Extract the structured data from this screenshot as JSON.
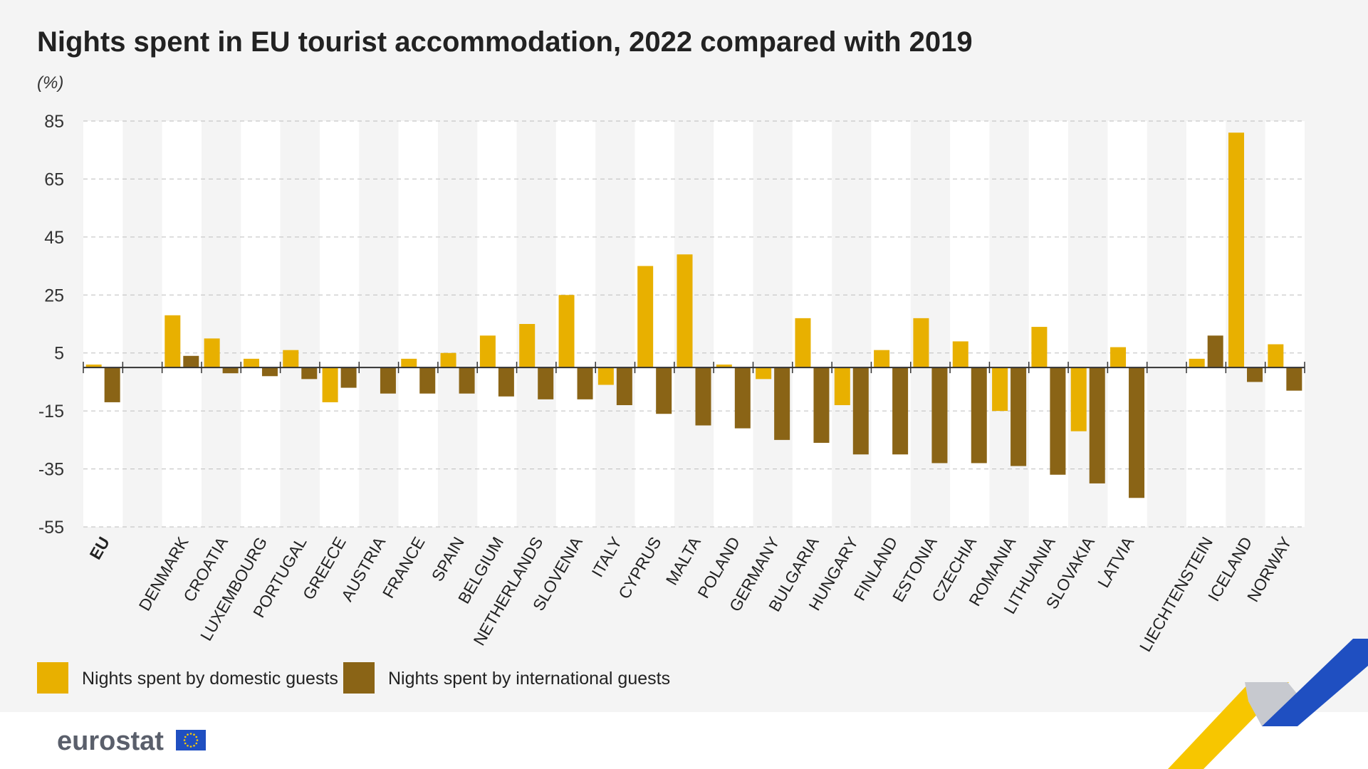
{
  "chart_data": {
    "type": "bar",
    "title": "Nights spent in EU tourist accommodation, 2022 compared with 2019",
    "ylabel": "(%)",
    "ylim": [
      -55,
      85
    ],
    "yticks": [
      85,
      65,
      45,
      25,
      5,
      -15,
      -35,
      -55
    ],
    "grid": true,
    "legend_position": "bottom-left",
    "categories": [
      "EU",
      "",
      "DENMARK",
      "CROATIA",
      "LUXEMBOURG",
      "PORTUGAL",
      "GREECE",
      "AUSTRIA",
      "FRANCE",
      "SPAIN",
      "BELGIUM",
      "NETHERLANDS",
      "SLOVENIA",
      "ITALY",
      "CYPRUS",
      "MALTA",
      "POLAND",
      "GERMANY",
      "BULGARIA",
      "HUNGARY",
      "FINLAND",
      "ESTONIA",
      "CZECHIA",
      "ROMANIA",
      "LITHUANIA",
      "SLOVAKIA",
      "LATVIA",
      "",
      "LIECHTENSTEIN",
      "ICELAND",
      "NORWAY"
    ],
    "bold_categories": [
      "EU"
    ],
    "series": [
      {
        "name": "Nights spent by domestic guests",
        "color": "#e8b000",
        "values": [
          1,
          null,
          18,
          10,
          3,
          6,
          -12,
          null,
          3,
          5,
          11,
          15,
          25,
          -6,
          35,
          39,
          1,
          -4,
          17,
          -13,
          6,
          17,
          9,
          -15,
          14,
          -22,
          7,
          null,
          3,
          81,
          8
        ]
      },
      {
        "name": "Nights spent by international guests",
        "color": "#8a6416",
        "values": [
          -12,
          null,
          4,
          -2,
          -3,
          -4,
          -7,
          -9,
          -9,
          -9,
          -10,
          -11,
          -11,
          -13,
          -16,
          -20,
          -21,
          -25,
          -26,
          -30,
          -30,
          -33,
          -33,
          -34,
          -37,
          -40,
          -45,
          null,
          11,
          -5,
          -8
        ]
      }
    ]
  },
  "branding": {
    "logo_text": "eurostat",
    "colors": {
      "yellow": "#f7c600",
      "blue": "#1f4fc1",
      "grey": "#c7c9cf"
    }
  }
}
